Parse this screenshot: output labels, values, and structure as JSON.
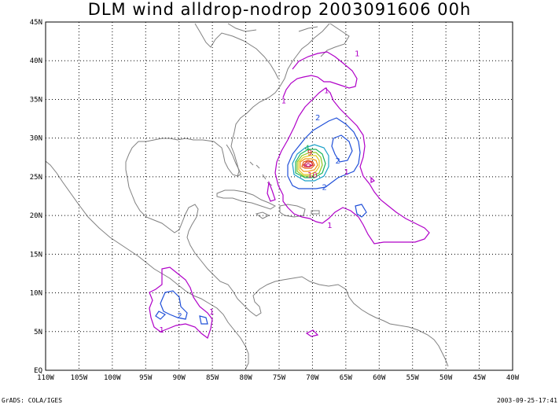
{
  "title": "DLM wind alldrop-nodrop 2003091606 00h",
  "footer_left": "GrADS: COLA/IGES",
  "footer_right": "2003-09-25-17:41",
  "colors": {
    "c1": "#b000c8",
    "c2": "#1f4fd8",
    "c3": "#1aa0c8",
    "c4": "#1ab45a",
    "c5": "#8cc81e",
    "c6": "#e6c81e",
    "c7": "#f09614",
    "c8": "#e65a14",
    "c9": "#d21e1e",
    "c10": "#c81e78"
  },
  "chart_data": {
    "type": "contour-map",
    "lon_range": [
      -110,
      -40
    ],
    "lat_range": [
      0,
      45
    ],
    "x_ticks": [
      "110W",
      "105W",
      "100W",
      "95W",
      "90W",
      "85W",
      "80W",
      "75W",
      "70W",
      "65W",
      "60W",
      "55W",
      "50W",
      "45W",
      "40W"
    ],
    "y_ticks": [
      "EQ",
      "5N",
      "10N",
      "15N",
      "20N",
      "25N",
      "30N",
      "35N",
      "40N",
      "45N"
    ],
    "grid": true,
    "contour_labels": [
      {
        "text": "1",
        "lon": -63.3,
        "lat": 40.9,
        "color": "c1"
      },
      {
        "text": "1",
        "lon": -74.3,
        "lat": 34.8,
        "color": "c1"
      },
      {
        "text": "1",
        "lon": -67.9,
        "lat": 36.1,
        "color": "c1"
      },
      {
        "text": "2",
        "lon": -69.2,
        "lat": 32.6,
        "color": "c2"
      },
      {
        "text": "4",
        "lon": -70.8,
        "lat": 28.7,
        "color": "c4"
      },
      {
        "text": "9",
        "lon": -70.4,
        "lat": 28.1,
        "color": "c9"
      },
      {
        "text": "10",
        "lon": -70.0,
        "lat": 25.2,
        "color": "c10"
      },
      {
        "text": "2",
        "lon": -66.2,
        "lat": 27.0,
        "color": "c2"
      },
      {
        "text": "1",
        "lon": -64.9,
        "lat": 25.6,
        "color": "c1"
      },
      {
        "text": "2",
        "lon": -68.2,
        "lat": 23.6,
        "color": "c2"
      },
      {
        "text": "1",
        "lon": -67.4,
        "lat": 18.7,
        "color": "c1"
      },
      {
        "text": "1",
        "lon": -85.1,
        "lat": 7.5,
        "color": "c1"
      },
      {
        "text": "2",
        "lon": -89.9,
        "lat": 7.0,
        "color": "c2"
      },
      {
        "text": "1",
        "lon": -92.6,
        "lat": 5.2,
        "color": "c1"
      }
    ]
  }
}
